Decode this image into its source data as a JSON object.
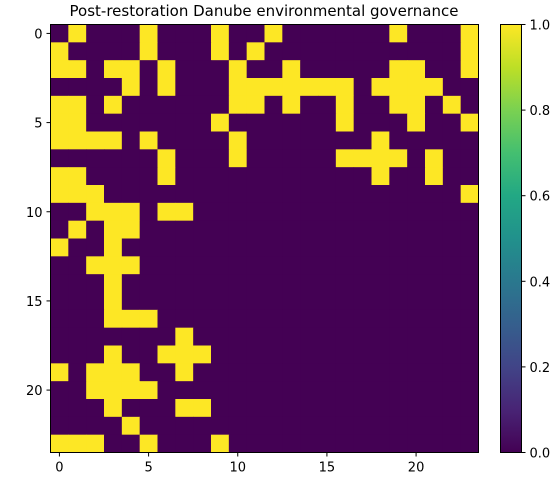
{
  "chart_data": {
    "type": "heatmap",
    "title": "Post-restoration Danube environmental governance",
    "xlabel": "",
    "ylabel": "",
    "rows": 24,
    "cols": 24,
    "x_ticks": [
      0,
      5,
      10,
      15,
      20
    ],
    "y_ticks": [
      0,
      5,
      10,
      15,
      20
    ],
    "colorbar": {
      "min": 0.0,
      "max": 1.0,
      "ticks": [
        "0.0",
        "0.2",
        "0.4",
        "0.6",
        "0.8",
        "1.0"
      ],
      "colormap": "viridis"
    },
    "low_color": "#440154",
    "high_color": "#fde725",
    "values": [
      [
        0,
        1,
        0,
        0,
        0,
        1,
        0,
        0,
        0,
        1,
        0,
        0,
        1,
        0,
        0,
        0,
        0,
        0,
        0,
        1,
        0,
        0,
        0,
        1
      ],
      [
        1,
        0,
        0,
        0,
        0,
        1,
        0,
        0,
        0,
        1,
        0,
        1,
        0,
        0,
        0,
        0,
        0,
        0,
        0,
        0,
        0,
        0,
        0,
        1
      ],
      [
        1,
        1,
        0,
        1,
        1,
        0,
        1,
        0,
        0,
        0,
        1,
        0,
        0,
        1,
        0,
        0,
        0,
        0,
        0,
        1,
        1,
        0,
        0,
        1
      ],
      [
        0,
        0,
        0,
        0,
        1,
        0,
        1,
        0,
        0,
        0,
        1,
        1,
        1,
        1,
        1,
        1,
        1,
        0,
        1,
        1,
        1,
        1,
        0,
        0
      ],
      [
        1,
        1,
        0,
        1,
        0,
        0,
        0,
        0,
        0,
        0,
        1,
        1,
        0,
        1,
        0,
        0,
        1,
        0,
        0,
        1,
        1,
        0,
        1,
        0
      ],
      [
        1,
        1,
        0,
        0,
        0,
        0,
        0,
        0,
        0,
        1,
        0,
        0,
        0,
        0,
        0,
        0,
        1,
        0,
        0,
        0,
        1,
        0,
        0,
        1
      ],
      [
        1,
        1,
        1,
        1,
        0,
        1,
        0,
        0,
        0,
        0,
        1,
        0,
        0,
        0,
        0,
        0,
        0,
        0,
        1,
        0,
        0,
        0,
        0,
        0
      ],
      [
        0,
        0,
        0,
        0,
        0,
        0,
        1,
        0,
        0,
        0,
        1,
        0,
        0,
        0,
        0,
        0,
        1,
        1,
        1,
        1,
        0,
        1,
        0,
        0
      ],
      [
        1,
        1,
        0,
        0,
        0,
        0,
        1,
        0,
        0,
        0,
        0,
        0,
        0,
        0,
        0,
        0,
        0,
        0,
        1,
        0,
        0,
        1,
        0,
        0
      ],
      [
        1,
        1,
        1,
        0,
        0,
        0,
        0,
        0,
        0,
        0,
        0,
        0,
        0,
        0,
        0,
        0,
        0,
        0,
        0,
        0,
        0,
        0,
        0,
        1
      ],
      [
        0,
        0,
        1,
        1,
        1,
        0,
        1,
        1,
        0,
        0,
        0,
        0,
        0,
        0,
        0,
        0,
        0,
        0,
        0,
        0,
        0,
        0,
        0,
        0
      ],
      [
        0,
        1,
        0,
        1,
        1,
        0,
        0,
        0,
        0,
        0,
        0,
        0,
        0,
        0,
        0,
        0,
        0,
        0,
        0,
        0,
        0,
        0,
        0,
        0
      ],
      [
        1,
        0,
        0,
        1,
        0,
        0,
        0,
        0,
        0,
        0,
        0,
        0,
        0,
        0,
        0,
        0,
        0,
        0,
        0,
        0,
        0,
        0,
        0,
        0
      ],
      [
        0,
        0,
        1,
        1,
        1,
        0,
        0,
        0,
        0,
        0,
        0,
        0,
        0,
        0,
        0,
        0,
        0,
        0,
        0,
        0,
        0,
        0,
        0,
        0
      ],
      [
        0,
        0,
        0,
        1,
        0,
        0,
        0,
        0,
        0,
        0,
        0,
        0,
        0,
        0,
        0,
        0,
        0,
        0,
        0,
        0,
        0,
        0,
        0,
        0
      ],
      [
        0,
        0,
        0,
        1,
        0,
        0,
        0,
        0,
        0,
        0,
        0,
        0,
        0,
        0,
        0,
        0,
        0,
        0,
        0,
        0,
        0,
        0,
        0,
        0
      ],
      [
        0,
        0,
        0,
        1,
        1,
        1,
        0,
        0,
        0,
        0,
        0,
        0,
        0,
        0,
        0,
        0,
        0,
        0,
        0,
        0,
        0,
        0,
        0,
        0
      ],
      [
        0,
        0,
        0,
        0,
        0,
        0,
        0,
        1,
        0,
        0,
        0,
        0,
        0,
        0,
        0,
        0,
        0,
        0,
        0,
        0,
        0,
        0,
        0,
        0
      ],
      [
        0,
        0,
        0,
        1,
        0,
        0,
        1,
        1,
        1,
        0,
        0,
        0,
        0,
        0,
        0,
        0,
        0,
        0,
        0,
        0,
        0,
        0,
        0,
        0
      ],
      [
        1,
        0,
        1,
        1,
        1,
        0,
        0,
        1,
        0,
        0,
        0,
        0,
        0,
        0,
        0,
        0,
        0,
        0,
        0,
        0,
        0,
        0,
        0,
        0
      ],
      [
        0,
        0,
        1,
        1,
        1,
        1,
        0,
        0,
        0,
        0,
        0,
        0,
        0,
        0,
        0,
        0,
        0,
        0,
        0,
        0,
        0,
        0,
        0,
        0
      ],
      [
        0,
        0,
        0,
        1,
        0,
        0,
        0,
        1,
        1,
        0,
        0,
        0,
        0,
        0,
        0,
        0,
        0,
        0,
        0,
        0,
        0,
        0,
        0,
        0
      ],
      [
        0,
        0,
        0,
        0,
        1,
        0,
        0,
        0,
        0,
        0,
        0,
        0,
        0,
        0,
        0,
        0,
        0,
        0,
        0,
        0,
        0,
        0,
        0,
        0
      ],
      [
        1,
        1,
        1,
        0,
        0,
        1,
        0,
        0,
        0,
        1,
        0,
        0,
        0,
        0,
        0,
        0,
        0,
        0,
        0,
        0,
        0,
        0,
        0,
        0
      ]
    ]
  }
}
